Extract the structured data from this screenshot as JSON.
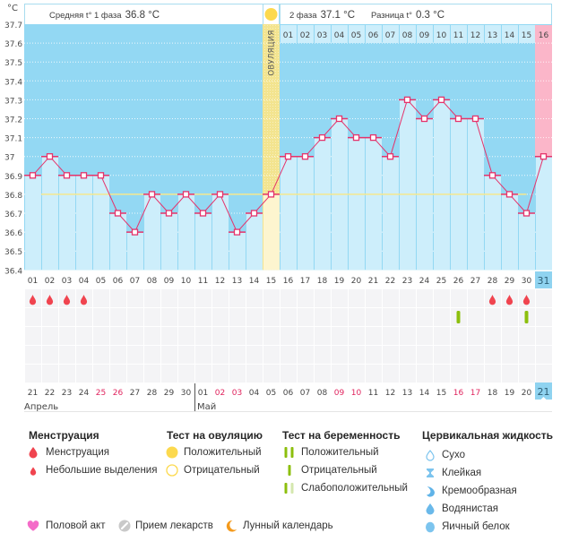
{
  "axis": {
    "unit": "°C",
    "y_ticks": [
      "37.7",
      "37.6",
      "37.5",
      "37.4",
      "37.3",
      "37.2",
      "37.1",
      "37",
      "36.9",
      "36.8",
      "36.7",
      "36.6",
      "36.5",
      "36.4"
    ]
  },
  "header": {
    "phase1_label": "Средняя t° 1 фаза",
    "phase1_value": "36.8 °C",
    "phase2_label": "2 фаза",
    "phase2_value": "37.1 °C",
    "diff_label": "Разница t°",
    "diff_value": "0.3 °C"
  },
  "ovulation": {
    "label": "ОВУЛЯЦИЯ",
    "icon": "sun-icon"
  },
  "post_ovulation_days": [
    "01",
    "02",
    "03",
    "04",
    "05",
    "06",
    "07",
    "08",
    "09",
    "10",
    "11",
    "12",
    "13",
    "14",
    "15",
    "16"
  ],
  "cycle_days": [
    "01",
    "02",
    "03",
    "04",
    "05",
    "06",
    "07",
    "08",
    "09",
    "10",
    "11",
    "12",
    "13",
    "14",
    "15",
    "16",
    "17",
    "18",
    "19",
    "20",
    "21",
    "22",
    "23",
    "24",
    "25",
    "26",
    "27",
    "28",
    "29",
    "30",
    "31"
  ],
  "today_cycle_day": 31,
  "calendar": {
    "dates": [
      {
        "day": "21",
        "weekend": false
      },
      {
        "day": "22",
        "weekend": false
      },
      {
        "day": "23",
        "weekend": false
      },
      {
        "day": "24",
        "weekend": false
      },
      {
        "day": "25",
        "weekend": true
      },
      {
        "day": "26",
        "weekend": true
      },
      {
        "day": "27",
        "weekend": false
      },
      {
        "day": "28",
        "weekend": false
      },
      {
        "day": "29",
        "weekend": false
      },
      {
        "day": "30",
        "weekend": false
      },
      {
        "day": "01",
        "weekend": false
      },
      {
        "day": "02",
        "weekend": true
      },
      {
        "day": "03",
        "weekend": true
      },
      {
        "day": "04",
        "weekend": false
      },
      {
        "day": "05",
        "weekend": false
      },
      {
        "day": "06",
        "weekend": false
      },
      {
        "day": "07",
        "weekend": false
      },
      {
        "day": "08",
        "weekend": false
      },
      {
        "day": "09",
        "weekend": true
      },
      {
        "day": "10",
        "weekend": true
      },
      {
        "day": "11",
        "weekend": false
      },
      {
        "day": "12",
        "weekend": false
      },
      {
        "day": "13",
        "weekend": false
      },
      {
        "day": "14",
        "weekend": false
      },
      {
        "day": "15",
        "weekend": false
      },
      {
        "day": "16",
        "weekend": true
      },
      {
        "day": "17",
        "weekend": true
      },
      {
        "day": "18",
        "weekend": false
      },
      {
        "day": "19",
        "weekend": false
      },
      {
        "day": "20",
        "weekend": false
      },
      {
        "day": "21",
        "weekend": false
      }
    ],
    "months": [
      {
        "label": "Апрель",
        "start_cycle_day": 1
      },
      {
        "label": "Май",
        "start_cycle_day": 11
      }
    ]
  },
  "events": {
    "menstruation_days": [
      1,
      2,
      3,
      4,
      28,
      29,
      30
    ],
    "pregnancy_test_negative_days": [
      26,
      30
    ]
  },
  "chart_data": {
    "type": "line",
    "title": "",
    "xlabel": "",
    "ylabel": "°C",
    "x": [
      1,
      2,
      3,
      4,
      5,
      6,
      7,
      8,
      9,
      10,
      11,
      12,
      13,
      14,
      15,
      16,
      17,
      18,
      19,
      20,
      21,
      22,
      23,
      24,
      25,
      26,
      27,
      28,
      29,
      30,
      31
    ],
    "values": [
      36.9,
      37.0,
      36.9,
      36.9,
      36.9,
      36.7,
      36.6,
      36.8,
      36.7,
      36.8,
      36.7,
      36.8,
      36.6,
      36.7,
      36.8,
      37.0,
      37.0,
      37.1,
      37.2,
      37.1,
      37.1,
      37.0,
      37.3,
      37.2,
      37.3,
      37.2,
      37.2,
      36.9,
      36.8,
      36.7,
      37.0
    ],
    "ylim": [
      36.4,
      37.7
    ],
    "y_step": 0.1,
    "grid": true,
    "coverline": 36.8,
    "coverline_days": [
      2,
      30
    ],
    "ovulation_day": 15,
    "phase1_avg": 36.8,
    "phase2_avg": 37.1
  },
  "legend": {
    "menstruation": {
      "title": "Менструация",
      "items": [
        "Менструация",
        "Небольшие выделения"
      ]
    },
    "ovulation_test": {
      "title": "Тест на овуляцию",
      "items": [
        "Положительный",
        "Отрицательный"
      ]
    },
    "pregnancy_test": {
      "title": "Тест на беременность",
      "items": [
        "Положительный",
        "Отрицательный",
        "Слабоположительный"
      ]
    },
    "cervical_fluid": {
      "title": "Цервикальная жидкость",
      "items": [
        "Сухо",
        "Клейкая",
        "Кремообразная",
        "Водянистая",
        "Яичный белок"
      ]
    },
    "other": [
      "Половой акт",
      "Прием лекарств",
      "Лунный календарь"
    ]
  },
  "colors": {
    "plot_bg": "#93d8f3",
    "bar": "#cdeefb",
    "line": "#e5336b",
    "coverline": "#f4e78e",
    "ovulation": "#f3e48f",
    "ovulation_light": "#fdf5cf",
    "today": "#fbb6c9",
    "today_badge": "#8fd3f0",
    "header_border": "#a8dcef",
    "weekend": "#e0245e",
    "cell": "#f4f4f6",
    "drop": "#f0444f",
    "test": "#8cbf0d",
    "test_weak": "#d4e7ae",
    "sun": "#fcd94e",
    "cervical": "#7cc4ee",
    "heart": "#f46bc8",
    "pill": "#c9c9c9",
    "moon": "#f49a1c"
  }
}
